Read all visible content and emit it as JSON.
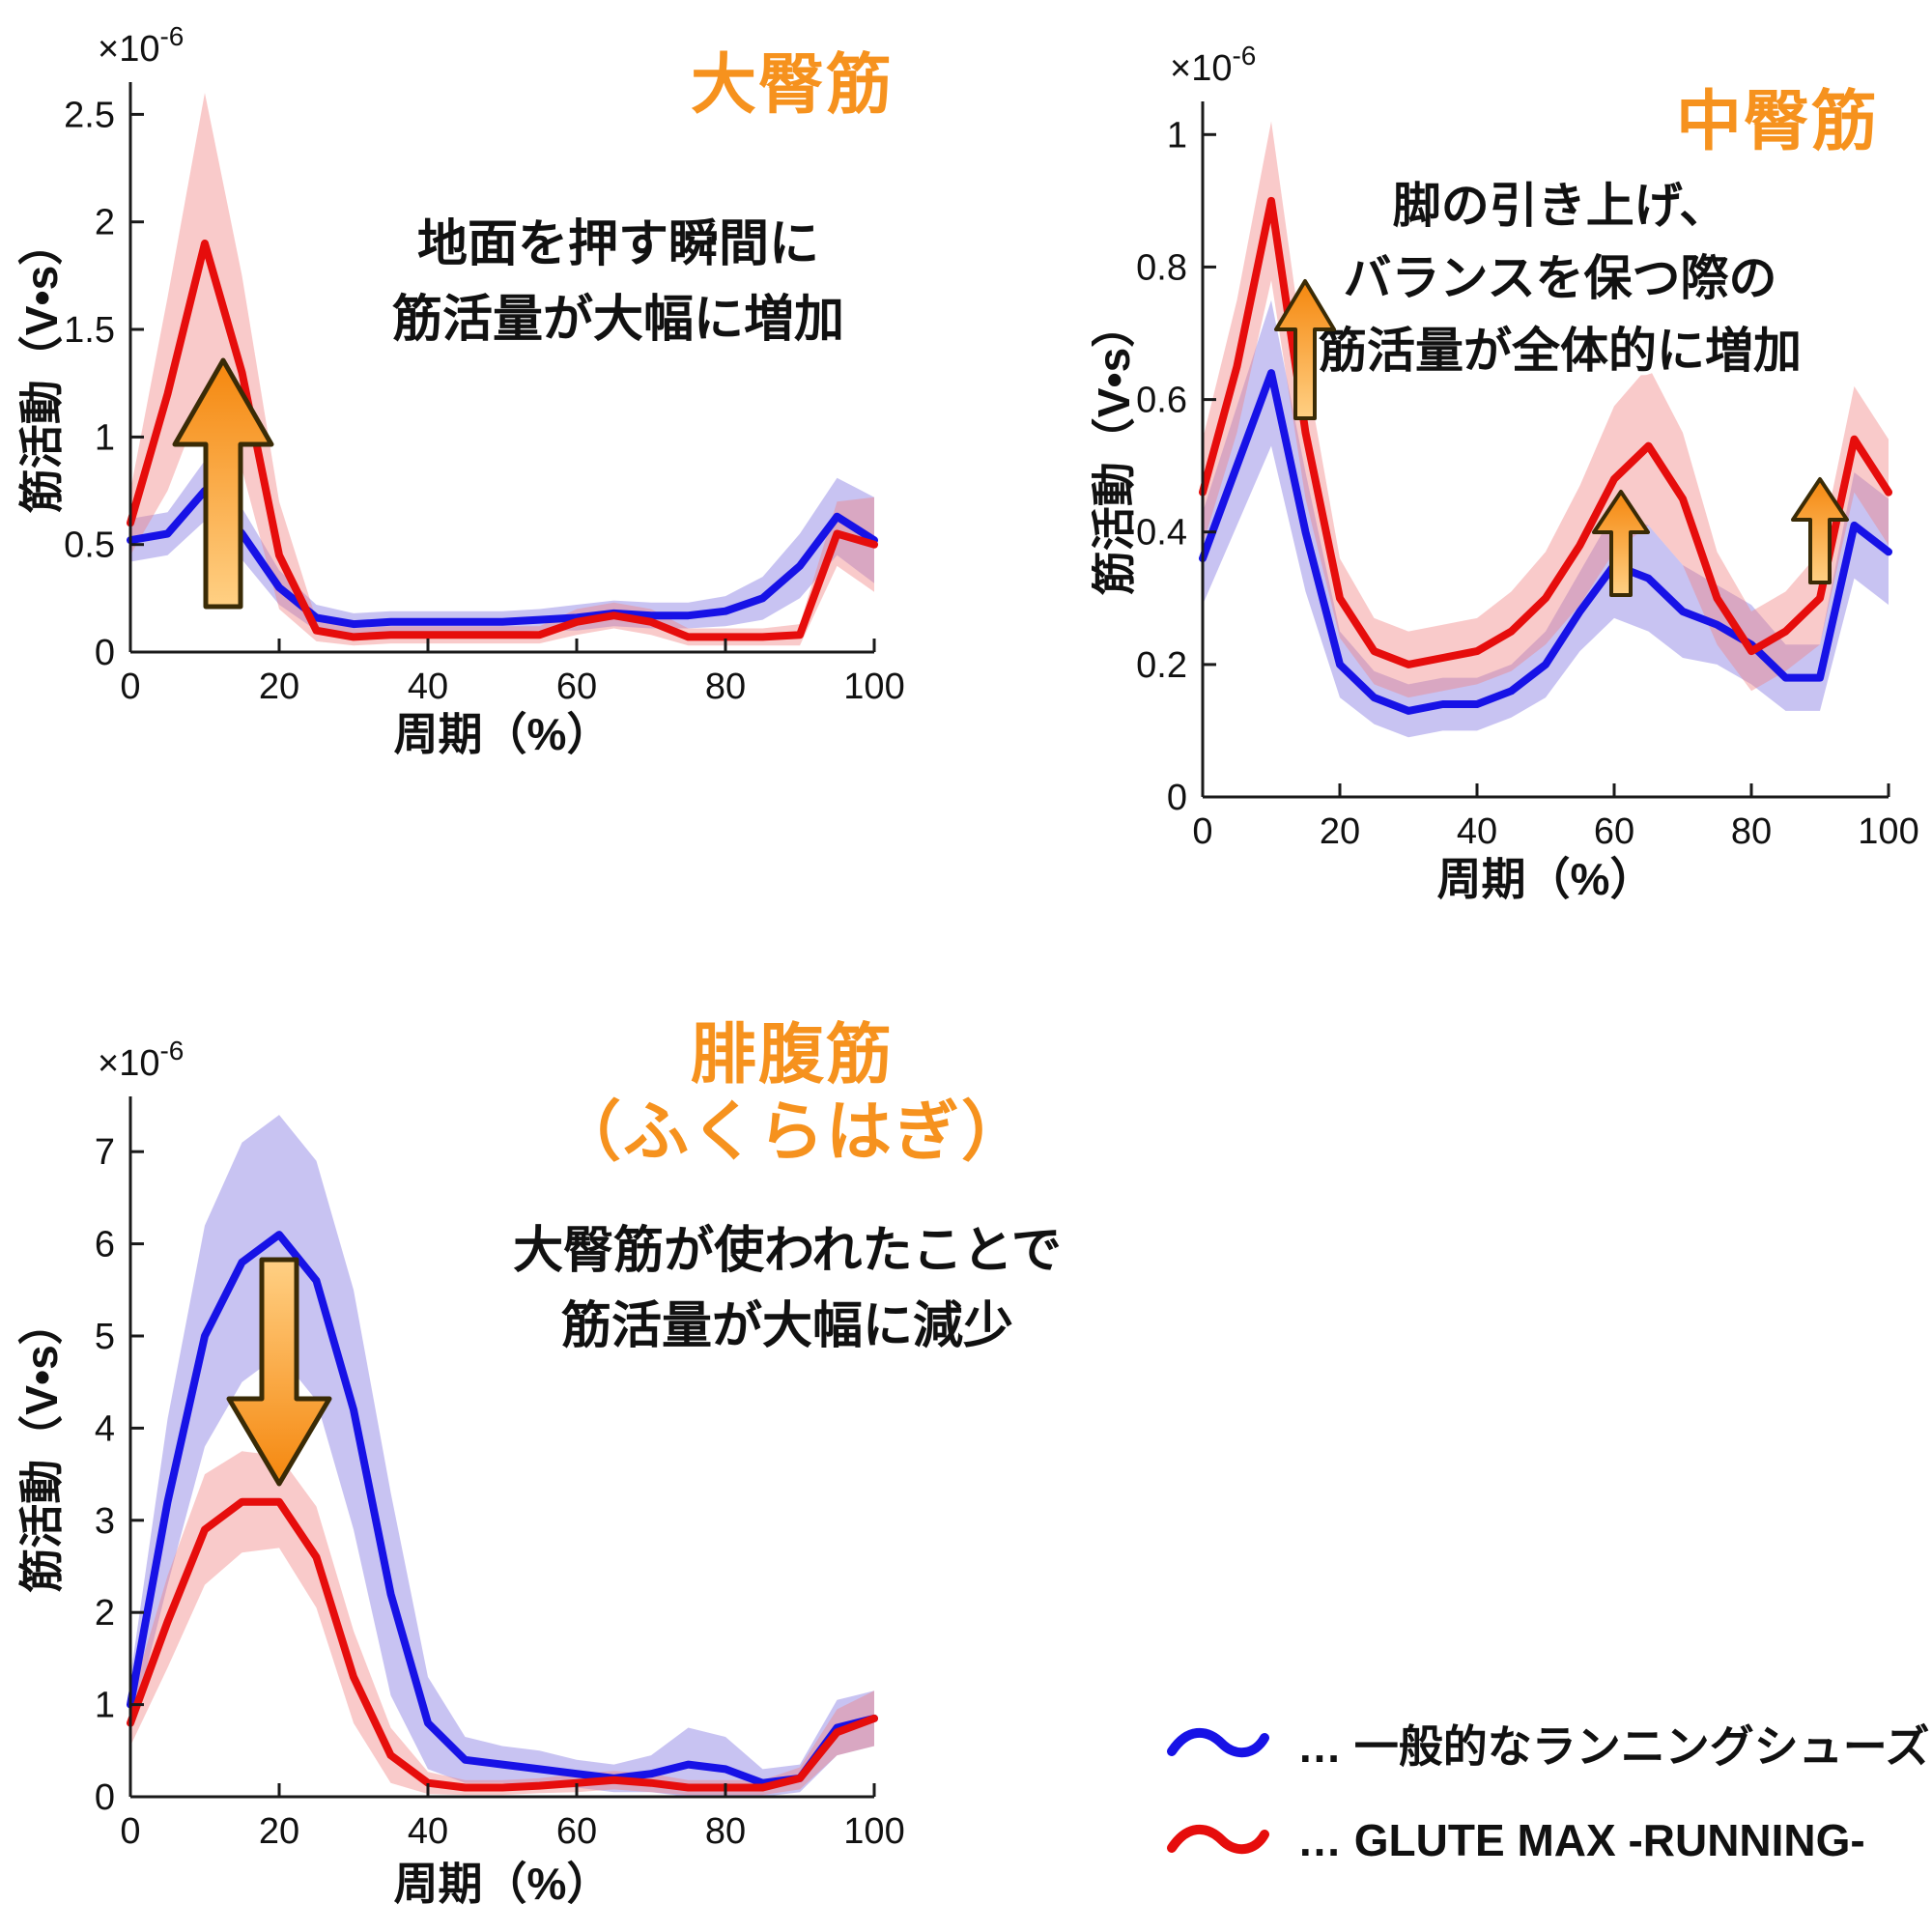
{
  "colors": {
    "accent_orange": "#f6921e",
    "line_red": "#e60d0c",
    "line_blue": "#1712e6",
    "band_red": "#f08080",
    "band_blue": "#7b6fe0",
    "axis": "#1a1a1a"
  },
  "legend": {
    "items": [
      {
        "series": "一般的なランニングシューズ",
        "label": "… 一般的なランニングシューズ",
        "color": "#1712e6"
      },
      {
        "series": "GLUTE MAX -RUNNING-",
        "label": "… GLUTE MAX -RUNNING-",
        "color": "#e60d0c"
      }
    ]
  },
  "chart_data": [
    {
      "type": "line",
      "title": "大臀筋",
      "annotation_lines": [
        "地面を押す瞬間に",
        "筋活量が大幅に増加"
      ],
      "xlabel": "周期（%）",
      "ylabel": "筋活動（V•s）",
      "scale_label": {
        "base": "×10",
        "exp": "-6"
      },
      "xlim": [
        0,
        100
      ],
      "ylim": [
        0,
        2.65
      ],
      "xticks": [
        0,
        20,
        40,
        60,
        80,
        100
      ],
      "yticks": [
        0,
        0.5,
        1,
        1.5,
        2,
        2.5
      ],
      "x": [
        0,
        5,
        10,
        15,
        20,
        25,
        30,
        35,
        40,
        45,
        50,
        55,
        60,
        65,
        70,
        75,
        80,
        85,
        90,
        95,
        100
      ],
      "series": [
        {
          "name": "一般的なランニングシューズ",
          "color": "#1712e6",
          "band_color": "#7b6fe0",
          "values": [
            0.52,
            0.55,
            0.75,
            0.55,
            0.3,
            0.16,
            0.13,
            0.14,
            0.14,
            0.14,
            0.14,
            0.15,
            0.16,
            0.18,
            0.17,
            0.17,
            0.19,
            0.25,
            0.4,
            0.63,
            0.52
          ],
          "band": [
            0.1,
            0.1,
            0.14,
            0.12,
            0.08,
            0.06,
            0.05,
            0.05,
            0.05,
            0.05,
            0.05,
            0.05,
            0.06,
            0.06,
            0.06,
            0.06,
            0.07,
            0.1,
            0.15,
            0.18,
            0.2
          ]
        },
        {
          "name": "GLUTE MAX -RUNNING-",
          "color": "#e60d0c",
          "band_color": "#f08080",
          "values": [
            0.6,
            1.2,
            1.9,
            1.3,
            0.45,
            0.1,
            0.07,
            0.08,
            0.08,
            0.08,
            0.08,
            0.08,
            0.14,
            0.17,
            0.14,
            0.07,
            0.07,
            0.07,
            0.08,
            0.55,
            0.5
          ],
          "band": [
            0.15,
            0.45,
            0.7,
            0.45,
            0.25,
            0.05,
            0.04,
            0.04,
            0.04,
            0.04,
            0.04,
            0.04,
            0.06,
            0.06,
            0.06,
            0.04,
            0.04,
            0.04,
            0.05,
            0.15,
            0.22
          ]
        }
      ],
      "arrows": [
        {
          "direction": "up"
        }
      ]
    },
    {
      "type": "line",
      "title": "中臀筋",
      "annotation_lines": [
        "脚の引き上げ、",
        "バランスを保つ際の",
        "筋活量が全体的に増加"
      ],
      "xlabel": "周期（%）",
      "ylabel": "筋活動（V•s）",
      "scale_label": {
        "base": "×10",
        "exp": "-6"
      },
      "xlim": [
        0,
        100
      ],
      "ylim": [
        0,
        1.05
      ],
      "xticks": [
        0,
        20,
        40,
        60,
        80,
        100
      ],
      "yticks": [
        0,
        0.2,
        0.4,
        0.6,
        0.8,
        1
      ],
      "x": [
        0,
        5,
        10,
        15,
        20,
        25,
        30,
        35,
        40,
        45,
        50,
        55,
        60,
        65,
        70,
        75,
        80,
        85,
        90,
        95,
        100
      ],
      "series": [
        {
          "name": "一般的なランニングシューズ",
          "color": "#1712e6",
          "band_color": "#7b6fe0",
          "values": [
            0.36,
            0.5,
            0.64,
            0.4,
            0.2,
            0.15,
            0.13,
            0.14,
            0.14,
            0.16,
            0.2,
            0.28,
            0.35,
            0.33,
            0.28,
            0.26,
            0.23,
            0.18,
            0.18,
            0.41,
            0.37
          ],
          "band": [
            0.07,
            0.09,
            0.11,
            0.09,
            0.05,
            0.04,
            0.04,
            0.04,
            0.04,
            0.04,
            0.05,
            0.06,
            0.08,
            0.08,
            0.07,
            0.06,
            0.06,
            0.05,
            0.05,
            0.08,
            0.08
          ]
        },
        {
          "name": "GLUTE MAX -RUNNING-",
          "color": "#e60d0c",
          "band_color": "#f08080",
          "values": [
            0.46,
            0.65,
            0.9,
            0.55,
            0.3,
            0.22,
            0.2,
            0.21,
            0.22,
            0.25,
            0.3,
            0.38,
            0.48,
            0.53,
            0.45,
            0.3,
            0.22,
            0.25,
            0.3,
            0.54,
            0.46
          ],
          "band": [
            0.08,
            0.1,
            0.12,
            0.1,
            0.06,
            0.05,
            0.05,
            0.05,
            0.05,
            0.06,
            0.07,
            0.09,
            0.11,
            0.12,
            0.1,
            0.07,
            0.06,
            0.06,
            0.07,
            0.08,
            0.08
          ]
        }
      ],
      "arrows": [
        {
          "direction": "up"
        },
        {
          "direction": "up"
        },
        {
          "direction": "up"
        }
      ]
    },
    {
      "type": "line",
      "title": "腓腹筋（ふくらはぎ）",
      "title_lines": [
        "腓腹筋",
        "（ふくらはぎ）"
      ],
      "annotation_lines": [
        "大臀筋が使われたことで",
        "筋活量が大幅に減少"
      ],
      "xlabel": "周期（%）",
      "ylabel": "筋活動（V•s）",
      "scale_label": {
        "base": "×10",
        "exp": "-6"
      },
      "xlim": [
        0,
        100
      ],
      "ylim": [
        0,
        7.6
      ],
      "xticks": [
        0,
        20,
        40,
        60,
        80,
        100
      ],
      "yticks": [
        0,
        1,
        2,
        3,
        4,
        5,
        6,
        7
      ],
      "x": [
        0,
        5,
        10,
        15,
        20,
        25,
        30,
        35,
        40,
        45,
        50,
        55,
        60,
        65,
        70,
        75,
        80,
        85,
        90,
        95,
        100
      ],
      "series": [
        {
          "name": "一般的なランニングシューズ",
          "color": "#1712e6",
          "band_color": "#7b6fe0",
          "values": [
            1.0,
            3.2,
            5.0,
            5.8,
            6.1,
            5.6,
            4.2,
            2.2,
            0.8,
            0.4,
            0.35,
            0.3,
            0.25,
            0.2,
            0.25,
            0.35,
            0.3,
            0.15,
            0.2,
            0.75,
            0.85
          ],
          "band": [
            0.3,
            0.9,
            1.2,
            1.3,
            1.3,
            1.3,
            1.3,
            1.1,
            0.5,
            0.25,
            0.2,
            0.2,
            0.15,
            0.15,
            0.2,
            0.4,
            0.35,
            0.15,
            0.15,
            0.3,
            0.3
          ]
        },
        {
          "name": "GLUTE MAX -RUNNING-",
          "color": "#e60d0c",
          "band_color": "#f08080",
          "values": [
            0.8,
            1.9,
            2.9,
            3.2,
            3.2,
            2.6,
            1.3,
            0.45,
            0.15,
            0.1,
            0.1,
            0.12,
            0.15,
            0.18,
            0.15,
            0.1,
            0.1,
            0.1,
            0.2,
            0.7,
            0.85
          ],
          "band": [
            0.25,
            0.5,
            0.6,
            0.55,
            0.5,
            0.55,
            0.5,
            0.3,
            0.12,
            0.08,
            0.08,
            0.08,
            0.1,
            0.1,
            0.1,
            0.08,
            0.08,
            0.08,
            0.12,
            0.25,
            0.3
          ]
        }
      ],
      "arrows": [
        {
          "direction": "down"
        }
      ]
    }
  ]
}
